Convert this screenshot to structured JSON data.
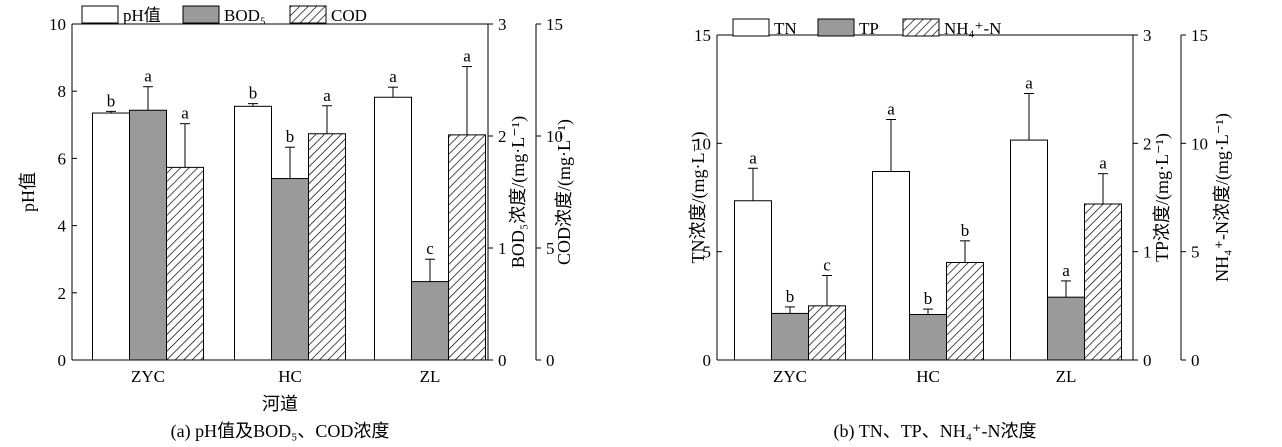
{
  "colors": {
    "white": "#ffffff",
    "gray": "#9a9a9a",
    "ink": "#000000"
  },
  "chart_data": [
    {
      "type": "bar",
      "caption": "(a) pH值及BOD₅、COD浓度",
      "xlabel": "河道",
      "categories": [
        "ZYC",
        "HC",
        "ZL"
      ],
      "axes": [
        {
          "id": "y1",
          "side": "left",
          "label": "pH值",
          "lim": [
            0,
            10
          ],
          "ticks": [
            "0",
            "2",
            "4",
            "6",
            "8",
            "10"
          ]
        },
        {
          "id": "y2",
          "side": "right1",
          "label": "BOD₅浓度/(mg·L⁻¹)",
          "lim": [
            0,
            3
          ],
          "ticks": [
            "0",
            "1",
            "2",
            "3"
          ]
        },
        {
          "id": "y3",
          "side": "right2",
          "label": "COD浓度/(mg·L⁻¹)",
          "lim": [
            0,
            15
          ],
          "ticks": [
            "0",
            "5",
            "10",
            "15"
          ]
        }
      ],
      "legend": {
        "placement": "top-left"
      },
      "series": [
        {
          "name": "pH值",
          "axis": "y1",
          "fill": "white",
          "values": [
            7.35,
            7.55,
            7.82
          ],
          "errors": [
            0.05,
            0.08,
            0.3
          ],
          "letters": [
            "b",
            "b",
            "a"
          ]
        },
        {
          "name": "BOD₅",
          "axis": "y2",
          "fill": "gray",
          "values": [
            2.23,
            1.62,
            0.7
          ],
          "errors": [
            0.21,
            0.28,
            0.2
          ],
          "letters": [
            "a",
            "b",
            "c"
          ]
        },
        {
          "name": "COD",
          "axis": "y3",
          "fill": "hatch",
          "values": [
            8.6,
            10.1,
            10.05
          ],
          "errors": [
            1.95,
            1.25,
            3.05
          ],
          "letters": [
            "a",
            "a",
            "a"
          ]
        }
      ]
    },
    {
      "type": "bar",
      "caption": "(b) TN、TP、NH₄⁺-N浓度",
      "xlabel": "",
      "categories": [
        "ZYC",
        "HC",
        "ZL"
      ],
      "axes": [
        {
          "id": "y1",
          "side": "left",
          "label": "TN浓度/(mg·L⁻¹)",
          "lim": [
            0,
            15
          ],
          "ticks": [
            "0",
            "5",
            "10",
            "15"
          ]
        },
        {
          "id": "y2",
          "side": "right1",
          "label": "TP浓度/(mg·L⁻¹)",
          "lim": [
            0,
            3
          ],
          "ticks": [
            "0",
            "1",
            "2",
            "3"
          ]
        },
        {
          "id": "y3",
          "side": "right2",
          "label": "NH₄⁺-N浓度/(mg·L⁻¹)",
          "lim": [
            0,
            15
          ],
          "ticks": [
            "0",
            "5",
            "10",
            "15"
          ]
        }
      ],
      "legend": {
        "placement": "top-left"
      },
      "series": [
        {
          "name": "TN",
          "axis": "y1",
          "fill": "white",
          "values": [
            7.35,
            8.7,
            10.15
          ],
          "errors": [
            1.5,
            2.4,
            2.15
          ],
          "letters": [
            "a",
            "a",
            "a"
          ]
        },
        {
          "name": "TP",
          "axis": "y2",
          "fill": "gray",
          "values": [
            0.43,
            0.42,
            0.58
          ],
          "errors": [
            0.06,
            0.05,
            0.15
          ],
          "letters": [
            "b",
            "b",
            "a"
          ]
        },
        {
          "name": "NH₄⁺-N",
          "axis": "y3",
          "fill": "hatch",
          "values": [
            2.5,
            4.5,
            7.2
          ],
          "errors": [
            1.4,
            1.0,
            1.4
          ],
          "letters": [
            "c",
            "b",
            "a"
          ]
        }
      ]
    }
  ]
}
